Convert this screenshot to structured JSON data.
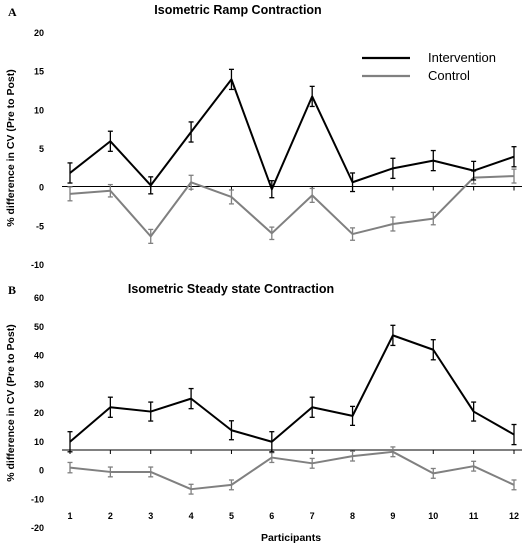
{
  "chart_data": [
    {
      "type": "line",
      "panel_label": "A",
      "title": "Isometric Ramp Contraction",
      "xlabel": "",
      "ylabel": "% difference in CV  (Pre to Post)",
      "ylim": [
        -10,
        20
      ],
      "yticks": [
        -10,
        -5,
        0,
        5,
        10,
        15,
        20
      ],
      "x": [
        1,
        2,
        3,
        4,
        5,
        6,
        7,
        8,
        9,
        10,
        11,
        12
      ],
      "legend_position": "top-right",
      "series": [
        {
          "name": "Intervention",
          "color": "#000000",
          "values": [
            1.9,
            6.0,
            0.3,
            7.2,
            14.0,
            -0.2,
            11.8,
            0.7,
            2.5,
            3.5,
            2.2,
            4.0
          ],
          "error": [
            1.3,
            1.3,
            1.1,
            1.3,
            1.3,
            1.1,
            1.3,
            1.2,
            1.3,
            1.3,
            1.2,
            1.3
          ]
        },
        {
          "name": "Control",
          "color": "#808080",
          "values": [
            -0.8,
            -0.4,
            -6.3,
            0.7,
            -1.2,
            -5.9,
            -1.0,
            -6.0,
            -4.7,
            -4.0,
            1.3,
            1.5
          ],
          "error": [
            0.9,
            0.8,
            0.9,
            0.9,
            0.9,
            0.8,
            0.9,
            0.8,
            0.9,
            0.8,
            0.8,
            0.9
          ]
        }
      ]
    },
    {
      "type": "line",
      "panel_label": "B",
      "title": "Isometric Steady state Contraction",
      "xlabel": "Participants",
      "ylabel": "% difference in CV  (Pre to Post)",
      "ylim": [
        -20,
        60
      ],
      "yticks": [
        -20,
        -10,
        0,
        10,
        20,
        30,
        40,
        50,
        60
      ],
      "x": [
        1,
        2,
        3,
        4,
        5,
        6,
        7,
        8,
        9,
        10,
        11,
        12
      ],
      "xticks": [
        "1",
        "2",
        "3",
        "4",
        "5",
        "6",
        "7",
        "8",
        "9",
        "10",
        "11",
        "12"
      ],
      "series": [
        {
          "name": "Intervention",
          "color": "#000000",
          "values": [
            10.0,
            22.0,
            20.5,
            25.0,
            14.0,
            10.0,
            22.0,
            19.0,
            47.0,
            42.0,
            20.5,
            12.5
          ],
          "error": [
            3.5,
            3.5,
            3.3,
            3.5,
            3.3,
            3.5,
            3.5,
            3.3,
            3.5,
            3.5,
            3.3,
            3.5
          ]
        },
        {
          "name": "Control",
          "color": "#808080",
          "values": [
            1.0,
            -0.5,
            -0.5,
            -6.5,
            -5.0,
            4.5,
            2.5,
            5.0,
            6.5,
            -1.0,
            1.5,
            -5.0
          ],
          "error": [
            1.8,
            1.7,
            1.7,
            1.7,
            1.7,
            1.7,
            1.7,
            1.7,
            1.7,
            1.7,
            1.7,
            1.7
          ]
        }
      ]
    }
  ]
}
